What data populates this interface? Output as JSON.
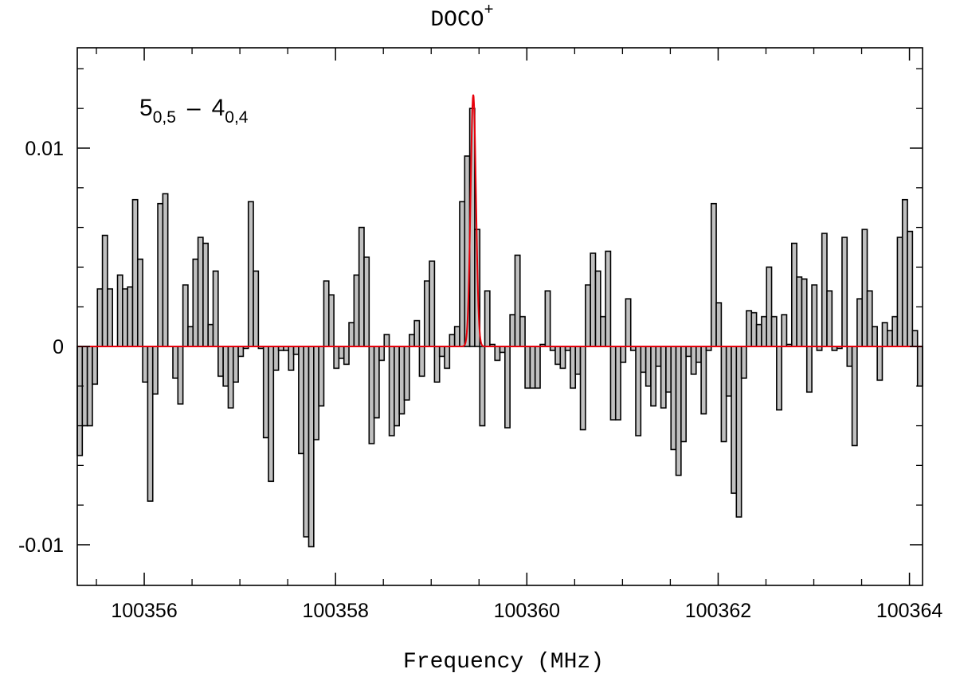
{
  "chart_data": {
    "type": "step-histogram",
    "title": "DOCO",
    "title_sup": "+",
    "x_label": "Frequency (MHz)",
    "annotation": {
      "a": "5",
      "a_sub": "0,5",
      "sep": "–",
      "b": "4",
      "b_sub": "0,4"
    },
    "color": "#c0c0c0",
    "bins": [
      100355.3,
      100355.3526,
      100355.4052,
      100355.4578,
      100355.5104,
      100355.563,
      100355.6156,
      100355.6682,
      100355.7208,
      100355.7734,
      100355.826,
      100355.8786,
      100355.9312,
      100355.9838,
      100356.0364,
      100356.089,
      100356.1416,
      100356.1942,
      100356.2468,
      100356.2994,
      100356.352,
      100356.4046,
      100356.4572,
      100356.5098,
      100356.5624,
      100356.615,
      100356.6676,
      100356.7202,
      100356.7728,
      100356.8254,
      100356.878,
      100356.9306,
      100356.9832,
      100357.0358,
      100357.0884,
      100357.141,
      100357.1936,
      100357.2462,
      100357.2988,
      100357.3514,
      100357.404,
      100357.4566,
      100357.5092,
      100357.5618,
      100357.6144,
      100357.667,
      100357.7196,
      100357.7722,
      100357.8248,
      100357.8774,
      100357.93,
      100357.9826,
      100358.0352,
      100358.0878,
      100358.1404,
      100358.193,
      100358.2456,
      100358.2982,
      100358.3508,
      100358.4034,
      100358.456,
      100358.5086,
      100358.5612,
      100358.6138,
      100358.6664,
      100358.719,
      100358.7716,
      100358.8242,
      100358.8768,
      100358.9294,
      100358.982,
      100359.0346,
      100359.0872,
      100359.1398,
      100359.1924,
      100359.245,
      100359.2976,
      100359.3502,
      100359.4028,
      100359.4554,
      100359.508,
      100359.5606,
      100359.6132,
      100359.6658,
      100359.7184,
      100359.771,
      100359.8236,
      100359.8762,
      100359.9288,
      100359.9814,
      100360.034,
      100360.0866,
      100360.1392,
      100360.1918,
      100360.2444,
      100360.297,
      100360.3496,
      100360.4022,
      100360.4548,
      100360.5074,
      100360.56,
      100360.6126,
      100360.6652,
      100360.7178,
      100360.7704,
      100360.823,
      100360.8756,
      100360.9282,
      100360.9808,
      100361.0334,
      100361.086,
      100361.1386,
      100361.1912,
      100361.2438,
      100361.2964,
      100361.349,
      100361.4016,
      100361.4542,
      100361.5068,
      100361.5594,
      100361.612,
      100361.6646,
      100361.7172,
      100361.7698,
      100361.8224,
      100361.875,
      100361.9276,
      100361.9802,
      100362.0328,
      100362.0854,
      100362.138,
      100362.1906,
      100362.2432,
      100362.2958,
      100362.3484,
      100362.401,
      100362.4536,
      100362.5062,
      100362.5588,
      100362.6114,
      100362.664,
      100362.7166,
      100362.7692,
      100362.8218,
      100362.8744,
      100362.927,
      100362.9796,
      100363.0322,
      100363.0848,
      100363.1374,
      100363.19,
      100363.2426,
      100363.2952,
      100363.3478,
      100363.4004,
      100363.453,
      100363.5056,
      100363.5582,
      100363.6108,
      100363.6634,
      100363.716,
      100363.7686,
      100363.8212,
      100363.8738,
      100363.9264,
      100363.979,
      100364.0316,
      100364.0842,
      100364.1368
    ],
    "values": [
      -0.0055,
      -0.004,
      -0.004,
      -0.0019,
      0.0029,
      0.0056,
      0.0029,
      0,
      0.0036,
      0.0029,
      0.003,
      0.0074,
      0.0044,
      -0.0018,
      -0.0078,
      -0.0024,
      0.0072,
      0.0077,
      0,
      -0.0016,
      -0.0029,
      0.0031,
      0.001,
      0.0044,
      0.0055,
      0.0052,
      0.0011,
      0.0038,
      -0.0015,
      -0.002,
      -0.0031,
      -0.0018,
      -0.0005,
      -0.0001,
      0.0073,
      0.0038,
      -0.0001,
      -0.0046,
      -0.0068,
      -0.0012,
      -0.0002,
      -0.0002,
      -0.0012,
      -0.0004,
      -0.0054,
      -0.0096,
      -0.0101,
      -0.0047,
      -0.003,
      0.0033,
      0.0026,
      -0.0011,
      -0.0006,
      -0.0009,
      0.0012,
      0.0036,
      0.006,
      0.0045,
      -0.0049,
      -0.0036,
      -0.0007,
      0.0006,
      -0.0045,
      -0.004,
      -0.0034,
      -0.0027,
      0.0006,
      0.0013,
      -0.0015,
      0.0033,
      0.0043,
      -0.0018,
      -0.0005,
      -0.0011,
      0.0006,
      0.001,
      0.0073,
      0.0096,
      0.012,
      0.0059,
      -0.004,
      0.0028,
      0.0001,
      -0.0007,
      -0.0003,
      -0.0041,
      0.0016,
      0.0046,
      0.0015,
      -0.0021,
      -0.0021,
      -0.0021,
      0.0001,
      0.0028,
      -0.0002,
      -0.0009,
      -0.0011,
      -0.0002,
      -0.0021,
      -0.0014,
      -0.0042,
      0.0031,
      0.0047,
      0.0038,
      0.0015,
      0.0048,
      -0.0037,
      -0.0037,
      -0.0008,
      0.0024,
      -0.0002,
      -0.0045,
      -0.0013,
      -0.002,
      -0.003,
      -0.001,
      -0.0031,
      -0.0023,
      -0.0052,
      -0.0065,
      -0.0048,
      -0.0005,
      -0.0014,
      -0.0008,
      -0.0034,
      -0.0002,
      0.0072,
      0.0022,
      -0.0048,
      -0.0025,
      -0.0074,
      -0.0086,
      -0.0016,
      0.0018,
      0.0017,
      0.0011,
      0.0015,
      0.004,
      0.0015,
      -0.0032,
      0.0016,
      0.0001,
      0.0052,
      0.0035,
      0.0034,
      -0.0023,
      0.0031,
      -0.0002,
      0.0057,
      0.0028,
      -0.0002,
      -0.0001,
      0.0055,
      -0.001,
      -0.005,
      0.0024,
      0.0059,
      0.0028,
      0.001,
      -0.0017,
      0.0012,
      0.0008,
      0.0015,
      0.0055,
      0.0074,
      0.0058,
      0.0008,
      -0.002
    ],
    "fit": {
      "color": "#e8000b",
      "amplitude": 0.0127,
      "center": 100359.44,
      "fwhm": 0.066
    },
    "xlim": [
      100355.3,
      100364.1368
    ],
    "ylim": [
      -0.01205,
      0.01506
    ],
    "xticks": [
      100356,
      100358,
      100360,
      100362,
      100364
    ],
    "yticks": [
      -0.01,
      0,
      0.01
    ],
    "xticks_minor": [
      100355.5,
      100356.5,
      100357,
      100357.5,
      100358.5,
      100359,
      100359.5,
      100360.5,
      100361,
      100361.5,
      100362.5,
      100363,
      100363.5
    ],
    "yticks_minor": [
      -0.008,
      -0.006,
      -0.004,
      -0.002,
      0.002,
      0.004,
      0.006,
      0.008,
      0.012,
      0.014
    ]
  }
}
